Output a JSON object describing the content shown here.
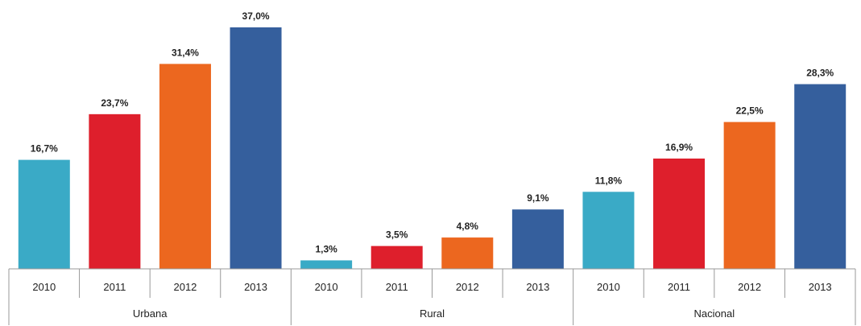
{
  "chart_data": {
    "type": "bar",
    "title": "",
    "xlabel": "",
    "ylabel": "",
    "ylim": [
      0,
      37.0
    ],
    "grid": false,
    "legend": "none",
    "groups": [
      {
        "name": "Urbana",
        "bars": [
          {
            "year": "2010",
            "value": 16.7,
            "label": "16,7%"
          },
          {
            "year": "2011",
            "value": 23.7,
            "label": "23,7%"
          },
          {
            "year": "2012",
            "value": 31.4,
            "label": "31,4%"
          },
          {
            "year": "2013",
            "value": 37.0,
            "label": "37,0%"
          }
        ]
      },
      {
        "name": "Rural",
        "bars": [
          {
            "year": "2010",
            "value": 1.3,
            "label": "1,3%"
          },
          {
            "year": "2011",
            "value": 3.5,
            "label": "3,5%"
          },
          {
            "year": "2012",
            "value": 4.8,
            "label": "4,8%"
          },
          {
            "year": "2013",
            "value": 9.1,
            "label": "9,1%"
          }
        ]
      },
      {
        "name": "Nacional",
        "bars": [
          {
            "year": "2010",
            "value": 11.8,
            "label": "11,8%"
          },
          {
            "year": "2011",
            "value": 16.9,
            "label": "16,9%"
          },
          {
            "year": "2012",
            "value": 22.5,
            "label": "22,5%"
          },
          {
            "year": "2013",
            "value": 28.3,
            "label": "28,3%"
          }
        ]
      }
    ],
    "colors": {
      "2010": "#3aaac6",
      "2011": "#de1f2c",
      "2012": "#ec671f",
      "2013": "#355f9d"
    },
    "axis_color": "#999999"
  }
}
